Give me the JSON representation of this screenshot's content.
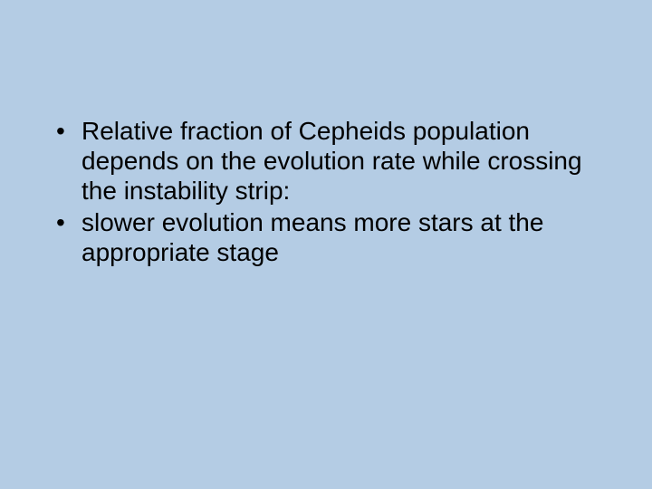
{
  "slide": {
    "background_color": "#b4cce4",
    "text_color": "#000000",
    "font_family": "Comic Sans MS",
    "font_size_pt": 28,
    "bullets": [
      "Relative fraction of Cepheids population depends on the evolution rate while crossing the instability strip:",
      "slower evolution means more stars at the appropriate stage"
    ]
  }
}
